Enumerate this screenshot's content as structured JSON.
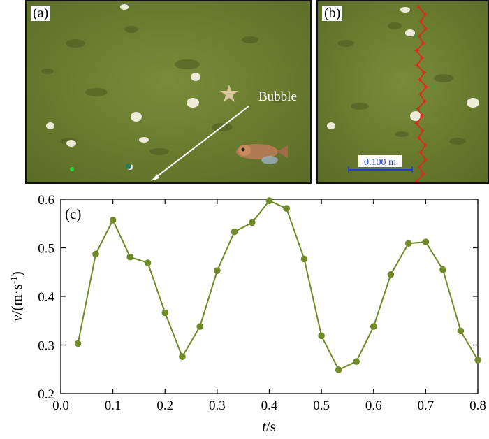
{
  "figure": {
    "panel_a_label": "(a)",
    "panel_b_label": "(b)",
    "panel_c_label": "(c)",
    "bubble_label": "Bubble",
    "scale_label": "0.100 m"
  },
  "colors": {
    "seabed": "#6b7d32",
    "seabed_dark": "#556625",
    "series": "#6f8a26",
    "trajectory": "#e8231a",
    "scale_bar": "#1f3fd1",
    "axis": "#000000"
  },
  "chart_data": {
    "type": "line",
    "title": "",
    "xlabel_italic": "t",
    "xlabel_rest": "/s",
    "ylabel_italic": "v",
    "ylabel_rest": "/(m·s",
    "ylabel_sup": "-1",
    "ylabel_close": ")",
    "xlim": [
      0.0,
      0.8
    ],
    "ylim": [
      0.2,
      0.6
    ],
    "x_ticks": [
      "0.0",
      "0.1",
      "0.2",
      "0.3",
      "0.4",
      "0.5",
      "0.6",
      "0.7",
      "0.8"
    ],
    "y_ticks": [
      "0.2",
      "0.3",
      "0.4",
      "0.5",
      "0.6"
    ],
    "series": [
      {
        "name": "velocity",
        "x": [
          0.033,
          0.067,
          0.1,
          0.133,
          0.167,
          0.2,
          0.233,
          0.267,
          0.3,
          0.333,
          0.367,
          0.4,
          0.433,
          0.467,
          0.5,
          0.533,
          0.567,
          0.6,
          0.633,
          0.667,
          0.7,
          0.733,
          0.767,
          0.8
        ],
        "y": [
          0.303,
          0.487,
          0.557,
          0.481,
          0.469,
          0.366,
          0.276,
          0.338,
          0.453,
          0.533,
          0.552,
          0.597,
          0.581,
          0.477,
          0.319,
          0.249,
          0.266,
          0.338,
          0.445,
          0.509,
          0.512,
          0.455,
          0.329,
          0.269
        ]
      }
    ]
  }
}
